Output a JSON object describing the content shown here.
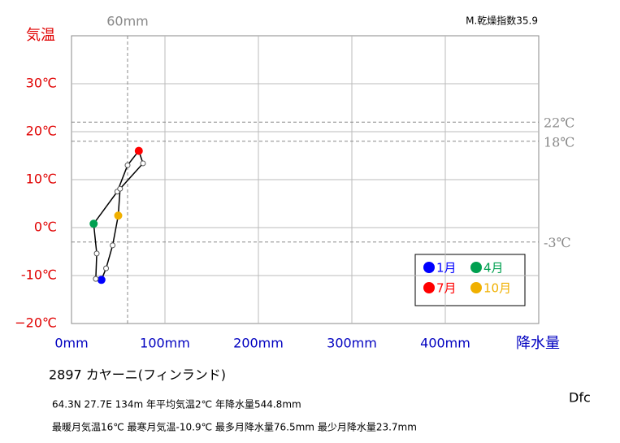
{
  "chart_data": {
    "type": "line",
    "y_label": "気温",
    "x_label": "降水量",
    "note": "M.乾燥指数35.9",
    "x": [
      32,
      26,
      27,
      23.7,
      49,
      60,
      72,
      76.5,
      52,
      50,
      44,
      37
    ],
    "values": [
      -10.9,
      -10.7,
      -5.4,
      0.8,
      7.5,
      13,
      16,
      13.4,
      8.1,
      2.5,
      -3.7,
      -8.5
    ],
    "line_color": "#000000",
    "highlights": [
      {
        "index": 0,
        "label": "1月",
        "color": "#0000ff"
      },
      {
        "index": 3,
        "label": "4月",
        "color": "#00a050"
      },
      {
        "index": 6,
        "label": "7月",
        "color": "#ff0000"
      },
      {
        "index": 9,
        "label": "10月",
        "color": "#f0b000"
      }
    ],
    "xlim": [
      0,
      500
    ],
    "ylim": [
      -20,
      40
    ],
    "xticks": [
      {
        "value": 0,
        "label": "0mm"
      },
      {
        "value": 100,
        "label": "100mm"
      },
      {
        "value": 200,
        "label": "200mm"
      },
      {
        "value": 300,
        "label": "300mm"
      },
      {
        "value": 400,
        "label": "400mm"
      }
    ],
    "yticks": [
      {
        "value": -20,
        "label": "−20℃"
      },
      {
        "value": -10,
        "label": "-10℃"
      },
      {
        "value": 0,
        "label": "0℃"
      },
      {
        "value": 10,
        "label": "10℃"
      },
      {
        "value": 20,
        "label": "20℃"
      },
      {
        "value": 30,
        "label": "30℃"
      }
    ],
    "y_reference_lines": [
      {
        "value": 22,
        "label": "22℃"
      },
      {
        "value": 18,
        "label": "18℃"
      },
      {
        "value": -3,
        "label": "-3℃"
      }
    ],
    "x_reference_lines": [
      {
        "value": 60,
        "label": "60mm"
      }
    ],
    "grid": true
  },
  "info": {
    "station": "2897  カヤーニ(フィンランド)",
    "line1": "64.3N  27.7E 134m  年平均気温2℃ 年降水量544.8mm",
    "line2": "最暖月気温16℃ 最寒月気温-10.9℃ 最多月降水量76.5mm 最少月降水量23.7mm",
    "climate": "Dfc"
  }
}
